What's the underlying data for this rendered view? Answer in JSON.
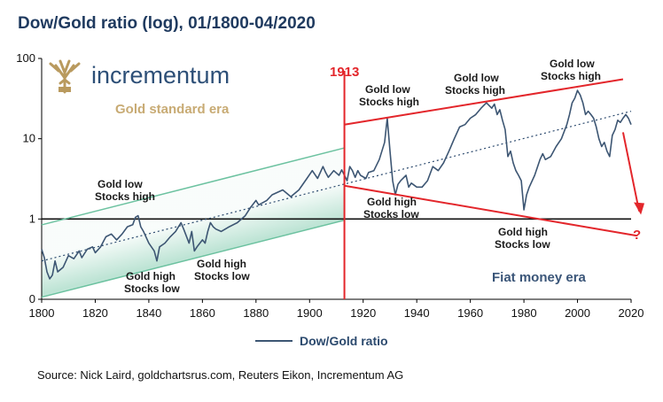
{
  "colors": {
    "series": "#3d5673",
    "channel": "#6cc2a0",
    "red": "#e3262b",
    "gold": "#c8ab74",
    "navy": "#2d4f77"
  },
  "brand": {
    "name": "incrementum",
    "logo_icon": "tree-icon"
  },
  "source": "Source: Nick Laird, goldchartsrus.com, Reuters Eikon, Incrementum AG",
  "chart_data": {
    "type": "line",
    "title": "Dow/Gold ratio (log), 01/1800-04/2020",
    "xlim": [
      1800,
      2020
    ],
    "ylim": [
      0.1,
      100
    ],
    "yscale": "log",
    "x_ticks": [
      "1800",
      "1820",
      "1840",
      "1860",
      "1880",
      "1900",
      "1920",
      "1940",
      "1960",
      "1980",
      "2000",
      "2020"
    ],
    "y_ticks": [
      {
        "value": 100,
        "label": "100"
      },
      {
        "value": 10,
        "label": "10"
      },
      {
        "value": 1,
        "label": "1"
      },
      {
        "value": 0.1,
        "label": "0"
      }
    ],
    "legend": {
      "placement": "bottom-center",
      "label": "Dow/Gold ratio"
    },
    "series": [
      {
        "name": "Dow/Gold ratio",
        "x": [
          1800,
          1801,
          1802,
          1803,
          1804,
          1805,
          1806,
          1808,
          1810,
          1812,
          1814,
          1815,
          1817,
          1819,
          1820,
          1822,
          1824,
          1826,
          1828,
          1830,
          1832,
          1834,
          1835,
          1836,
          1837,
          1838,
          1840,
          1842,
          1843,
          1844,
          1846,
          1848,
          1850,
          1852,
          1853,
          1855,
          1856,
          1857,
          1858,
          1860,
          1861,
          1862,
          1863,
          1864,
          1865,
          1867,
          1870,
          1873,
          1876,
          1878,
          1880,
          1881,
          1884,
          1886,
          1890,
          1893,
          1896,
          1899,
          1901,
          1903,
          1905,
          1906,
          1907,
          1909,
          1911,
          1912,
          1913,
          1914,
          1915,
          1916,
          1917,
          1918,
          1919,
          1921,
          1922,
          1924,
          1926,
          1928,
          1929,
          1930,
          1931,
          1932,
          1933,
          1934,
          1936,
          1937,
          1938,
          1940,
          1942,
          1944,
          1946,
          1948,
          1950,
          1952,
          1954,
          1956,
          1958,
          1960,
          1962,
          1964,
          1966,
          1968,
          1969,
          1970,
          1971,
          1972,
          1973,
          1974,
          1975,
          1976,
          1977,
          1978,
          1979,
          1980,
          1981,
          1982,
          1984,
          1986,
          1987,
          1988,
          1990,
          1992,
          1994,
          1996,
          1997,
          1998,
          1999,
          2000,
          2001,
          2002,
          2003,
          2004,
          2005,
          2006,
          2007,
          2008,
          2009,
          2010,
          2011,
          2012,
          2013,
          2014,
          2015,
          2016,
          2017,
          2018,
          2019,
          2020
        ],
        "values": [
          0.42,
          0.33,
          0.22,
          0.18,
          0.2,
          0.3,
          0.22,
          0.25,
          0.35,
          0.32,
          0.4,
          0.33,
          0.42,
          0.45,
          0.38,
          0.45,
          0.6,
          0.65,
          0.55,
          0.65,
          0.8,
          0.85,
          1.05,
          1.1,
          0.8,
          0.7,
          0.5,
          0.4,
          0.3,
          0.45,
          0.5,
          0.6,
          0.7,
          0.9,
          0.75,
          0.5,
          0.7,
          0.4,
          0.45,
          0.55,
          0.5,
          0.7,
          0.9,
          0.8,
          0.75,
          0.7,
          0.8,
          0.9,
          1.1,
          1.4,
          1.7,
          1.5,
          1.7,
          2.0,
          2.3,
          1.9,
          2.3,
          3.2,
          4.0,
          3.2,
          4.5,
          3.8,
          3.3,
          4.0,
          3.5,
          4.1,
          3.5,
          3.0,
          4.5,
          4.0,
          3.3,
          4.0,
          3.5,
          3.2,
          3.8,
          4.0,
          5.5,
          9.0,
          18.0,
          7.0,
          3.0,
          2.0,
          2.7,
          3.0,
          3.5,
          2.5,
          2.8,
          2.5,
          2.5,
          3.0,
          4.5,
          4.0,
          5.0,
          7.0,
          10.0,
          14.0,
          15.0,
          18.0,
          20.0,
          24.0,
          28.0,
          24.0,
          27.0,
          20.0,
          23.0,
          17.0,
          13.0,
          6.0,
          7.0,
          5.0,
          4.0,
          3.5,
          3.0,
          1.3,
          2.0,
          2.5,
          3.5,
          5.5,
          6.5,
          5.5,
          6.0,
          8.0,
          10.0,
          15.0,
          20.0,
          28.0,
          32.0,
          40.0,
          35.0,
          28.0,
          20.0,
          22.0,
          20.0,
          18.0,
          14.0,
          10.0,
          8.0,
          9.0,
          7.0,
          6.0,
          11.0,
          13.0,
          17.0,
          16.0,
          18.0,
          20.0,
          18.0,
          15.0
        ]
      }
    ],
    "annotations": {
      "era_gold": "Gold standard era",
      "era_fiat": "Fiat money era",
      "year_1913": "1913",
      "question": "?",
      "gold_low_1": [
        "Gold low",
        "Stocks high"
      ],
      "gold_high_1": [
        "Gold high",
        "Stocks low"
      ],
      "gold_high_2": [
        "Gold high",
        "Stocks low"
      ],
      "gold_low_2": [
        "Gold low",
        "Stocks high"
      ],
      "gold_high_3": [
        "Gold high",
        "Stocks low"
      ],
      "gold_low_3": [
        "Gold low",
        "Stocks high"
      ],
      "gold_high_4": [
        "Gold high",
        "Stocks low"
      ],
      "gold_low_4": [
        "Gold low",
        "Stocks high"
      ]
    }
  }
}
